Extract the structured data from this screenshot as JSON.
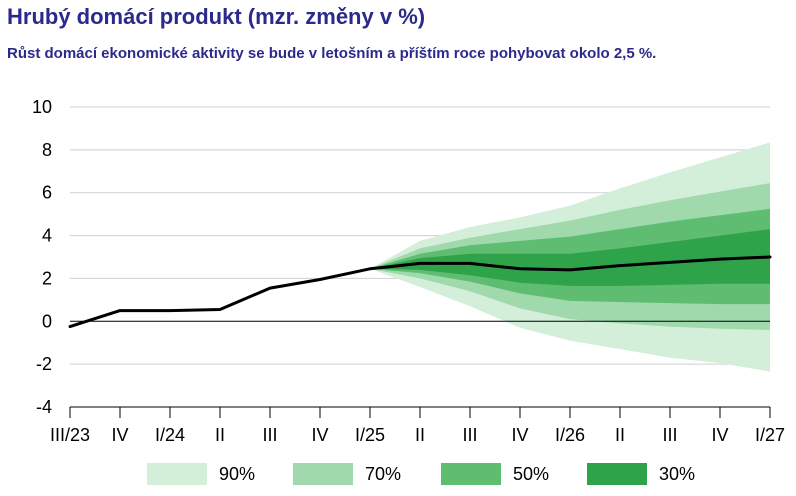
{
  "title": "Hrubý domácí produkt (mzr. změny v %)",
  "subtitle": "Růst domácí ekonomické aktivity se bude v letošním a příštím roce pohybovat okolo 2,5 %.",
  "chart_data": {
    "type": "line",
    "categories": [
      "III/23",
      "IV",
      "I/24",
      "II",
      "III",
      "IV",
      "I/25",
      "II",
      "III",
      "IV",
      "I/26",
      "II",
      "III",
      "IV",
      "I/27"
    ],
    "ylim": [
      -4,
      10
    ],
    "yticks": [
      "-4",
      "-2",
      "0",
      "2",
      "4",
      "6",
      "8",
      "10"
    ],
    "grid": "horizontal",
    "series": [
      {
        "values": [
          -0.25,
          0.5,
          0.5,
          0.55,
          1.55,
          1.95,
          2.45,
          2.7,
          2.7,
          2.45,
          2.4,
          2.6,
          2.75,
          2.9,
          3.0
        ]
      }
    ],
    "fan": {
      "start_index": 6,
      "bands": [
        {
          "name": "90%",
          "color": "#d3efd9",
          "lower": [
            2.45,
            1.6,
            0.7,
            -0.3,
            -0.9,
            -1.3,
            -1.7,
            -1.95,
            -2.35
          ],
          "upper": [
            2.45,
            3.75,
            4.4,
            4.85,
            5.4,
            6.2,
            6.95,
            7.65,
            8.35
          ]
        },
        {
          "name": "70%",
          "color": "#9fd9ac",
          "lower": [
            2.45,
            2.0,
            1.4,
            0.6,
            0.1,
            -0.1,
            -0.25,
            -0.35,
            -0.4
          ],
          "upper": [
            2.45,
            3.4,
            3.9,
            4.3,
            4.7,
            5.2,
            5.65,
            6.05,
            6.45
          ]
        },
        {
          "name": "50%",
          "color": "#5fbd72",
          "lower": [
            2.45,
            2.25,
            1.85,
            1.3,
            0.95,
            0.9,
            0.85,
            0.8,
            0.8
          ],
          "upper": [
            2.45,
            3.15,
            3.55,
            3.75,
            3.95,
            4.3,
            4.65,
            4.95,
            5.25
          ]
        },
        {
          "name": "30%",
          "color": "#2fa34a",
          "lower": [
            2.45,
            2.4,
            2.15,
            1.8,
            1.65,
            1.65,
            1.7,
            1.75,
            1.75
          ],
          "upper": [
            2.45,
            2.95,
            3.15,
            3.15,
            3.15,
            3.4,
            3.7,
            4.0,
            4.3
          ]
        }
      ]
    },
    "legend": [
      {
        "label": "90%",
        "color": "#d3efd9"
      },
      {
        "label": "70%",
        "color": "#9fd9ac"
      },
      {
        "label": "50%",
        "color": "#5fbd72"
      },
      {
        "label": "30%",
        "color": "#2fa34a"
      }
    ]
  }
}
